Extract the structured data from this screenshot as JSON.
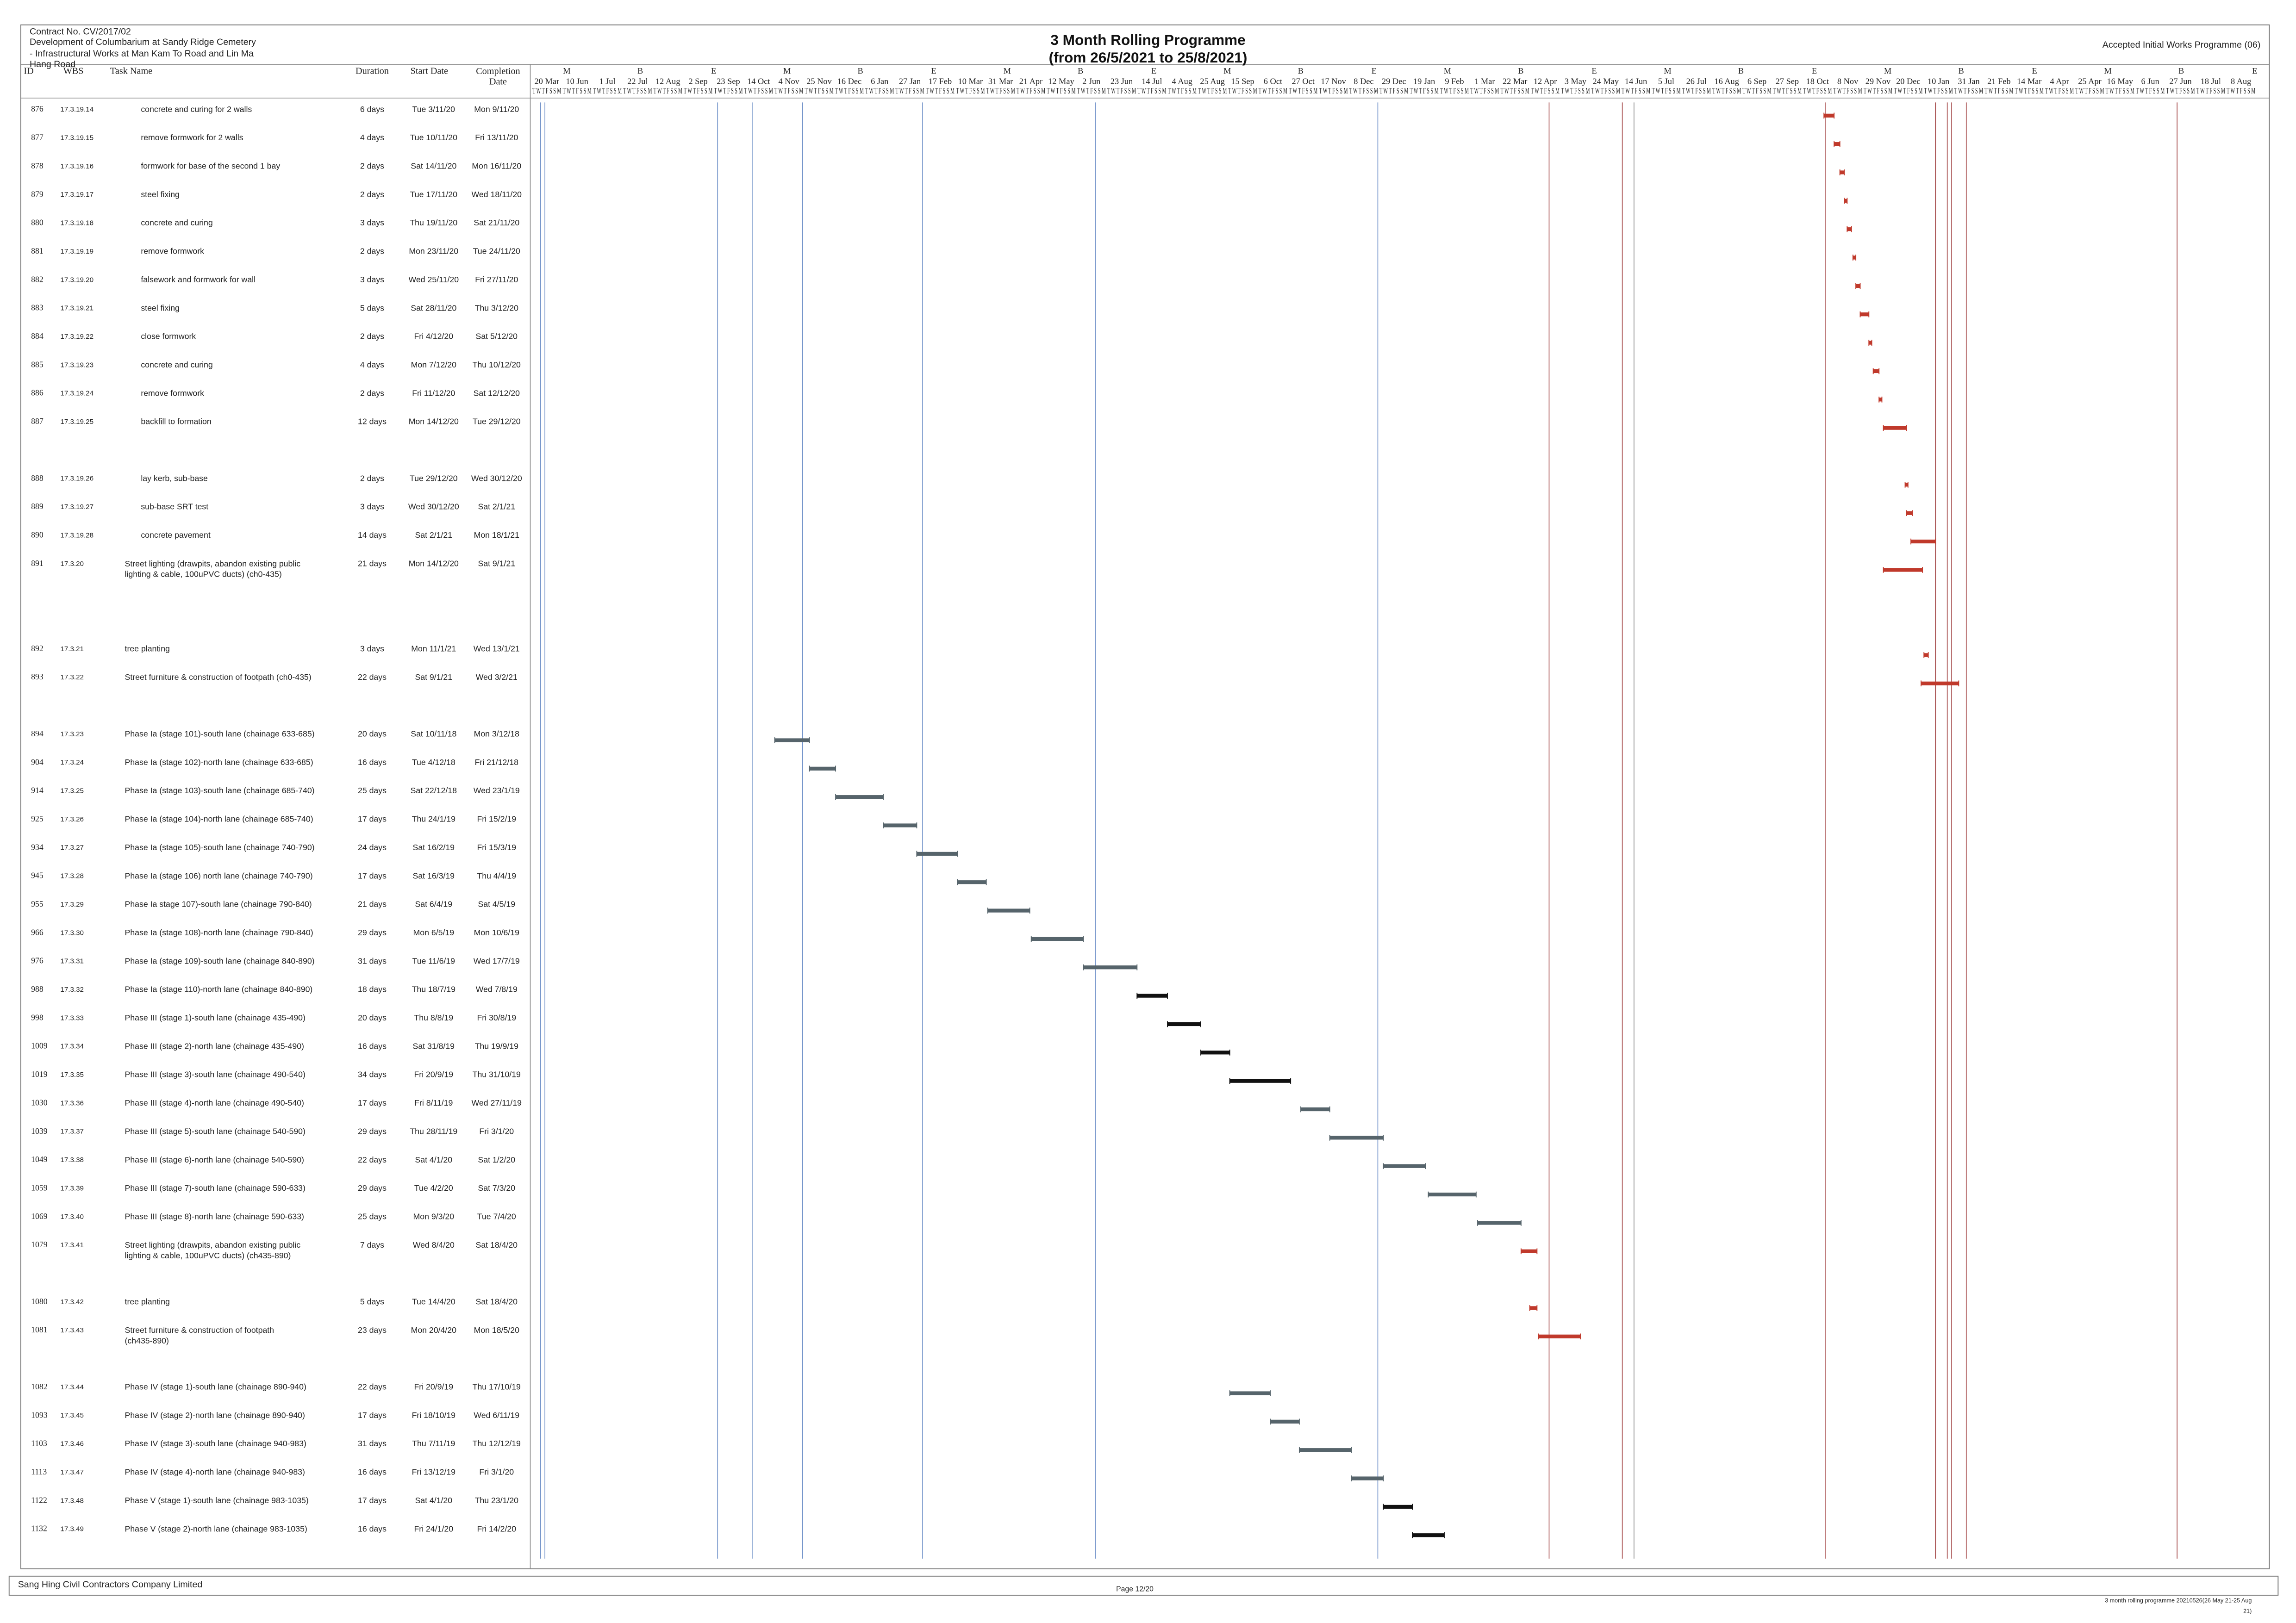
{
  "header": {
    "contract": "Contract No. CV/2017/02",
    "project_line1": "Development of Columbarium at Sandy Ridge Cemetery",
    "project_line2": "- Infrastructural Works at Man Kam To Road and Lin Ma Hang Road",
    "title": "3 Month Rolling Programme",
    "subtitle": "(from 26/5/2021 to 25/8/2021)",
    "programme_status": "Accepted Initial Works Programme (06)"
  },
  "columns": {
    "id": "ID",
    "wbs": "WBS",
    "task_name": "Task Name",
    "duration": "Duration",
    "start": "Start Date",
    "finish": "Completion Date"
  },
  "timeline": {
    "tiers": [
      "M",
      "B",
      "E",
      "M",
      "B",
      "E",
      "M",
      "B",
      "E",
      "M",
      "B",
      "E",
      "M",
      "B",
      "E",
      "M",
      "B",
      "E",
      "M",
      "B",
      "E",
      "M",
      "B",
      "E"
    ],
    "dates": [
      "20 Mar",
      "10 Jun",
      "1 Jul",
      "22 Jul",
      "12 Aug",
      "2 Sep",
      "23 Sep",
      "14 Oct",
      "4 Nov",
      "25 Nov",
      "16 Dec",
      "6 Jan",
      "27 Jan",
      "17 Feb",
      "10 Mar",
      "31 Mar",
      "21 Apr",
      "12 May",
      "2 Jun",
      "23 Jun",
      "14 Jul",
      "4 Aug",
      "25 Aug",
      "15 Sep",
      "6 Oct",
      "27 Oct",
      "17 Nov",
      "8 Dec",
      "29 Dec",
      "19 Jan",
      "9 Feb",
      "1 Mar",
      "22 Mar",
      "12 Apr",
      "3 May",
      "24 May",
      "14 Jun",
      "5 Jul",
      "26 Jul",
      "16 Aug",
      "6 Sep",
      "27 Sep",
      "18 Oct",
      "8 Nov",
      "29 Nov",
      "20 Dec",
      "10 Jan",
      "31 Jan",
      "21 Feb",
      "14 Mar",
      "4 Apr",
      "25 Apr",
      "16 May",
      "6 Jun",
      "27 Jun",
      "18 Jul",
      "8 Aug"
    ],
    "day_letters": "T W T F S S M"
  },
  "tasks": [
    {
      "id": "876",
      "wbs": "17.3.19.14",
      "name": "concrete and curing for 2 walls",
      "duration": "6 days",
      "start": "Tue 3/11/20",
      "finish": "Mon 9/11/20",
      "bar_color": "#c0392b"
    },
    {
      "id": "877",
      "wbs": "17.3.19.15",
      "name": "remove formwork for 2 walls",
      "duration": "4 days",
      "start": "Tue 10/11/20",
      "finish": "Fri 13/11/20",
      "bar_color": "#c0392b"
    },
    {
      "id": "878",
      "wbs": "17.3.19.16",
      "name": "formwork for base of the second 1 bay",
      "duration": "2 days",
      "start": "Sat 14/11/20",
      "finish": "Mon 16/11/20",
      "bar_color": "#c0392b"
    },
    {
      "id": "879",
      "wbs": "17.3.19.17",
      "name": "steel fixing",
      "duration": "2 days",
      "start": "Tue 17/11/20",
      "finish": "Wed 18/11/20",
      "bar_color": "#c0392b"
    },
    {
      "id": "880",
      "wbs": "17.3.19.18",
      "name": "concrete and curing",
      "duration": "3 days",
      "start": "Thu 19/11/20",
      "finish": "Sat 21/11/20",
      "bar_color": "#c0392b"
    },
    {
      "id": "881",
      "wbs": "17.3.19.19",
      "name": "remove formwork",
      "duration": "2 days",
      "start": "Mon 23/11/20",
      "finish": "Tue 24/11/20",
      "bar_color": "#c0392b"
    },
    {
      "id": "882",
      "wbs": "17.3.19.20",
      "name": "falsework and formwork for wall",
      "duration": "3 days",
      "start": "Wed 25/11/20",
      "finish": "Fri 27/11/20",
      "bar_color": "#c0392b"
    },
    {
      "id": "883",
      "wbs": "17.3.19.21",
      "name": "steel fixing",
      "duration": "5 days",
      "start": "Sat 28/11/20",
      "finish": "Thu 3/12/20",
      "bar_color": "#c0392b"
    },
    {
      "id": "884",
      "wbs": "17.3.19.22",
      "name": "close formwork",
      "duration": "2 days",
      "start": "Fri 4/12/20",
      "finish": "Sat 5/12/20",
      "bar_color": "#c0392b"
    },
    {
      "id": "885",
      "wbs": "17.3.19.23",
      "name": "concrete and curing",
      "duration": "4 days",
      "start": "Mon 7/12/20",
      "finish": "Thu 10/12/20",
      "bar_color": "#c0392b"
    },
    {
      "id": "886",
      "wbs": "17.3.19.24",
      "name": "remove formwork",
      "duration": "2 days",
      "start": "Fri 11/12/20",
      "finish": "Sat 12/12/20",
      "bar_color": "#c0392b"
    },
    {
      "id": "887",
      "wbs": "17.3.19.25",
      "name": "backfill to formation",
      "duration": "12 days",
      "start": "Mon 14/12/20",
      "finish": "Tue 29/12/20",
      "bar_color": "#c0392b"
    },
    {
      "id": "888",
      "wbs": "17.3.19.26",
      "name": "lay kerb, sub-base",
      "duration": "2 days",
      "start": "Tue 29/12/20",
      "finish": "Wed 30/12/20",
      "bar_color": "#c0392b"
    },
    {
      "id": "889",
      "wbs": "17.3.19.27",
      "name": "sub-base SRT test",
      "duration": "3 days",
      "start": "Wed 30/12/20",
      "finish": "Sat 2/1/21",
      "bar_color": "#c0392b"
    },
    {
      "id": "890",
      "wbs": "17.3.19.28",
      "name": "concrete pavement",
      "duration": "14 days",
      "start": "Sat 2/1/21",
      "finish": "Mon 18/1/21",
      "bar_color": "#c0392b"
    },
    {
      "id": "891",
      "wbs": "17.3.20",
      "name": "Street lighting (drawpits, abandon existing public lighting & cable, 100uPVC ducts) (ch0-435)",
      "duration": "21 days",
      "start": "Mon 14/12/20",
      "finish": "Sat 9/1/21",
      "bar_color": "#c0392b"
    },
    {
      "id": "892",
      "wbs": "17.3.21",
      "name": "tree planting",
      "duration": "3 days",
      "start": "Mon 11/1/21",
      "finish": "Wed 13/1/21",
      "bar_color": "#c0392b"
    },
    {
      "id": "893",
      "wbs": "17.3.22",
      "name": "Street furniture & construction of footpath (ch0-435)",
      "duration": "22 days",
      "start": "Sat 9/1/21",
      "finish": "Wed 3/2/21",
      "bar_color": "#c0392b"
    },
    {
      "id": "894",
      "wbs": "17.3.23",
      "name": "Phase Ia (stage 101)-south lane (chainage 633-685)",
      "duration": "20 days",
      "start": "Sat 10/11/18",
      "finish": "Mon 3/12/18",
      "bar_color": "#56646b"
    },
    {
      "id": "904",
      "wbs": "17.3.24",
      "name": "Phase Ia (stage 102)-north lane (chainage 633-685)",
      "duration": "16 days",
      "start": "Tue 4/12/18",
      "finish": "Fri 21/12/18",
      "bar_color": "#56646b"
    },
    {
      "id": "914",
      "wbs": "17.3.25",
      "name": "Phase Ia (stage 103)-south lane (chainage 685-740)",
      "duration": "25 days",
      "start": "Sat 22/12/18",
      "finish": "Wed 23/1/19",
      "bar_color": "#56646b"
    },
    {
      "id": "925",
      "wbs": "17.3.26",
      "name": "Phase Ia (stage 104)-north lane (chainage 685-740)",
      "duration": "17 days",
      "start": "Thu 24/1/19",
      "finish": "Fri 15/2/19",
      "bar_color": "#56646b"
    },
    {
      "id": "934",
      "wbs": "17.3.27",
      "name": "Phase Ia (stage 105)-south lane (chainage 740-790)",
      "duration": "24 days",
      "start": "Sat 16/2/19",
      "finish": "Fri 15/3/19",
      "bar_color": "#56646b"
    },
    {
      "id": "945",
      "wbs": "17.3.28",
      "name": "Phase Ia (stage 106) north lane (chainage 740-790)",
      "duration": "17 days",
      "start": "Sat 16/3/19",
      "finish": "Thu 4/4/19",
      "bar_color": "#56646b"
    },
    {
      "id": "955",
      "wbs": "17.3.29",
      "name": "Phase Ia stage 107)-south lane (chainage 790-840)",
      "duration": "21 days",
      "start": "Sat 6/4/19",
      "finish": "Sat 4/5/19",
      "bar_color": "#56646b"
    },
    {
      "id": "966",
      "wbs": "17.3.30",
      "name": "Phase Ia (stage 108)-north lane (chainage 790-840)",
      "duration": "29 days",
      "start": "Mon 6/5/19",
      "finish": "Mon 10/6/19",
      "bar_color": "#56646b"
    },
    {
      "id": "976",
      "wbs": "17.3.31",
      "name": "Phase Ia (stage 109)-south lane (chainage 840-890)",
      "duration": "31 days",
      "start": "Tue 11/6/19",
      "finish": "Wed 17/7/19",
      "bar_color": "#56646b"
    },
    {
      "id": "988",
      "wbs": "17.3.32",
      "name": "Phase Ia (stage 110)-north lane (chainage 840-890)",
      "duration": "18 days",
      "start": "Thu 18/7/19",
      "finish": "Wed 7/8/19",
      "bar_color": "#111111"
    },
    {
      "id": "998",
      "wbs": "17.3.33",
      "name": "Phase III (stage 1)-south lane (chainage 435-490)",
      "duration": "20 days",
      "start": "Thu 8/8/19",
      "finish": "Fri 30/8/19",
      "bar_color": "#111111"
    },
    {
      "id": "1009",
      "wbs": "17.3.34",
      "name": "Phase III (stage 2)-north lane (chainage 435-490)",
      "duration": "16 days",
      "start": "Sat 31/8/19",
      "finish": "Thu 19/9/19",
      "bar_color": "#111111"
    },
    {
      "id": "1019",
      "wbs": "17.3.35",
      "name": "Phase III (stage 3)-south lane (chainage 490-540)",
      "duration": "34 days",
      "start": "Fri 20/9/19",
      "finish": "Thu 31/10/19",
      "bar_color": "#111111"
    },
    {
      "id": "1030",
      "wbs": "17.3.36",
      "name": "Phase III (stage 4)-north lane (chainage 490-540)",
      "duration": "17 days",
      "start": "Fri 8/11/19",
      "finish": "Wed 27/11/19",
      "bar_color": "#56646b"
    },
    {
      "id": "1039",
      "wbs": "17.3.37",
      "name": "Phase III (stage 5)-south lane (chainage 540-590)",
      "duration": "29 days",
      "start": "Thu 28/11/19",
      "finish": "Fri 3/1/20",
      "bar_color": "#56646b"
    },
    {
      "id": "1049",
      "wbs": "17.3.38",
      "name": "Phase III (stage 6)-north lane (chainage 540-590)",
      "duration": "22 days",
      "start": "Sat 4/1/20",
      "finish": "Sat 1/2/20",
      "bar_color": "#56646b"
    },
    {
      "id": "1059",
      "wbs": "17.3.39",
      "name": "Phase III (stage 7)-south lane (chainage 590-633)",
      "duration": "29 days",
      "start": "Tue 4/2/20",
      "finish": "Sat 7/3/20",
      "bar_color": "#56646b"
    },
    {
      "id": "1069",
      "wbs": "17.3.40",
      "name": "Phase III (stage 8)-north lane (chainage 590-633)",
      "duration": "25 days",
      "start": "Mon 9/3/20",
      "finish": "Tue 7/4/20",
      "bar_color": "#56646b"
    },
    {
      "id": "1079",
      "wbs": "17.3.41",
      "name": "Street lighting (drawpits, abandon existing public lighting & cable, 100uPVC ducts) (ch435-890)",
      "duration": "7 days",
      "start": "Wed 8/4/20",
      "finish": "Sat 18/4/20",
      "bar_color": "#c0392b"
    },
    {
      "id": "1080",
      "wbs": "17.3.42",
      "name": "tree planting",
      "duration": "5 days",
      "start": "Tue 14/4/20",
      "finish": "Sat 18/4/20",
      "bar_color": "#c0392b"
    },
    {
      "id": "1081",
      "wbs": "17.3.43",
      "name": "Street furniture & construction of footpath (ch435-890)",
      "duration": "23 days",
      "start": "Mon 20/4/20",
      "finish": "Mon 18/5/20",
      "bar_color": "#c0392b"
    },
    {
      "id": "1082",
      "wbs": "17.3.44",
      "name": "Phase IV (stage 1)-south lane (chainage 890-940)",
      "duration": "22 days",
      "start": "Fri 20/9/19",
      "finish": "Thu 17/10/19",
      "bar_color": "#56646b"
    },
    {
      "id": "1093",
      "wbs": "17.3.45",
      "name": "Phase IV (stage 2)-north lane (chainage 890-940)",
      "duration": "17 days",
      "start": "Fri 18/10/19",
      "finish": "Wed 6/11/19",
      "bar_color": "#56646b"
    },
    {
      "id": "1103",
      "wbs": "17.3.46",
      "name": "Phase IV (stage 3)-south lane (chainage 940-983)",
      "duration": "31 days",
      "start": "Thu 7/11/19",
      "finish": "Thu 12/12/19",
      "bar_color": "#56646b"
    },
    {
      "id": "1113",
      "wbs": "17.3.47",
      "name": "Phase IV (stage 4)-north lane (chainage 940-983)",
      "duration": "16 days",
      "start": "Fri 13/12/19",
      "finish": "Fri 3/1/20",
      "bar_color": "#56646b"
    },
    {
      "id": "1122",
      "wbs": "17.3.48",
      "name": "Phase V (stage 1)-south lane (chainage 983-1035)",
      "duration": "17 days",
      "start": "Sat 4/1/20",
      "finish": "Thu 23/1/20",
      "bar_color": "#111111"
    },
    {
      "id": "1132",
      "wbs": "17.3.49",
      "name": "Phase V (stage 2)-north lane (chainage 983-1035)",
      "duration": "16 days",
      "start": "Fri 24/1/20",
      "finish": "Fri 14/2/20",
      "bar_color": "#111111"
    }
  ],
  "footer": {
    "company": "Sang Hing Civil Contractors Company Limited",
    "page": "Page 12/20",
    "file": "3 month rolling programme 20210526(26 May 21-25 Aug 21)"
  }
}
